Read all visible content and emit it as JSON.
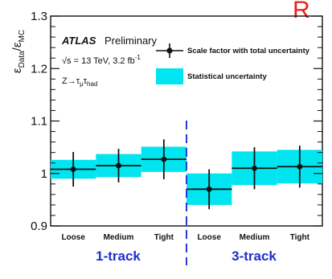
{
  "corner_text": "R",
  "chart_data": {
    "type": "scatter",
    "ylabel_main": "ε",
    "ylabel_num_sub": "Data",
    "ylabel_den_sub": "MC",
    "ylim": [
      0.9,
      1.3
    ],
    "yticks": [
      {
        "value": 0.9,
        "label": "0.9"
      },
      {
        "value": 1.0,
        "label": "1"
      },
      {
        "value": 1.1,
        "label": "1.1"
      },
      {
        "value": 1.2,
        "label": "1.2"
      },
      {
        "value": 1.3,
        "label": "1.3"
      }
    ],
    "groups": [
      {
        "name": "1-track",
        "categories": [
          "Loose",
          "Medium",
          "Tight"
        ]
      },
      {
        "name": "3-track",
        "categories": [
          "Loose",
          "Medium",
          "Tight"
        ]
      }
    ],
    "categories": [
      "Loose",
      "Medium",
      "Tight",
      "Loose",
      "Medium",
      "Tight"
    ],
    "series": [
      {
        "name": "Scale factor with total uncertainty",
        "values": [
          1.008,
          1.015,
          1.027,
          0.97,
          1.01,
          1.013
        ],
        "total_err": [
          0.033,
          0.032,
          0.038,
          0.038,
          0.04,
          0.04
        ]
      },
      {
        "name": "Statistical uncertainty",
        "stat_err": [
          0.018,
          0.022,
          0.024,
          0.03,
          0.032,
          0.032
        ]
      }
    ],
    "annotations": {
      "experiment": "ATLAS",
      "status": "Preliminary",
      "energy_prefix": "√s = 13 TeV, 3.2 fb",
      "energy_sup": "-1",
      "process_prefix": "Z→τ",
      "process_sub1": "μ",
      "process_mid": "τ",
      "process_sub2": "had"
    },
    "colors": {
      "points": "#111111",
      "stat_band": "#00e5ef",
      "group_label": "#1f2fd0",
      "divider": "#2a39d8"
    },
    "grid": false,
    "legend": "top-right"
  }
}
